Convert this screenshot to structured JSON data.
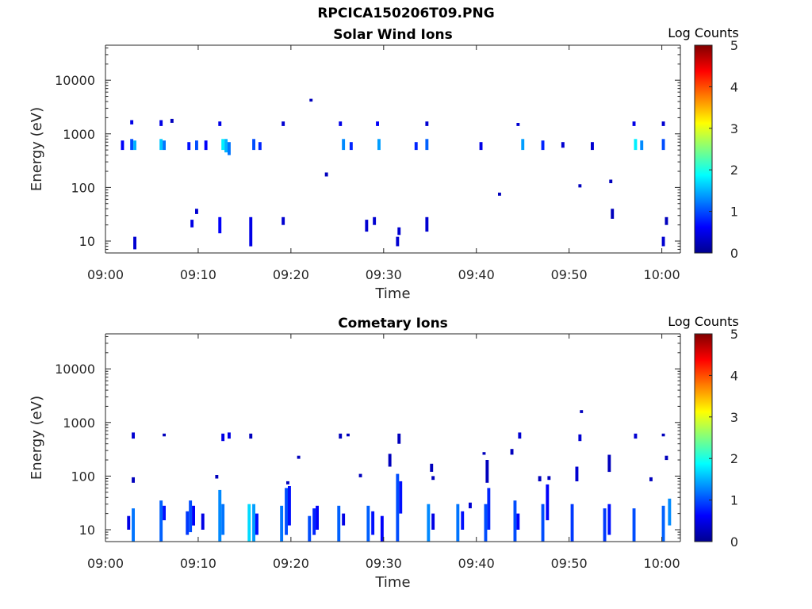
{
  "figure": {
    "title": "RPCICA150206T09.PNG"
  },
  "chart_data": [
    {
      "type": "heatmap",
      "title": "Solar Wind Ions",
      "xlabel": "Time",
      "ylabel": "Energy (eV)",
      "x_range": [
        "09:00",
        "10:02"
      ],
      "y_range": [
        6,
        45000
      ],
      "y_scale": "log",
      "x_ticks": [
        "09:00",
        "09:10",
        "09:20",
        "09:30",
        "09:40",
        "09:50",
        "10:00"
      ],
      "y_ticks": [
        "10",
        "100",
        "1000",
        "10000"
      ],
      "colorbar": {
        "label": "Log Counts",
        "min": 0,
        "max": 5,
        "ticks": [
          "0",
          "1",
          "2",
          "3",
          "4",
          "5"
        ],
        "colormap": "jet"
      },
      "grid": false,
      "cells": [
        {
          "t": "09:02:40",
          "e": [
            1500,
            1800
          ],
          "c": 0.5
        },
        {
          "t": "09:02:40",
          "e": [
            500,
            800
          ],
          "c": 1.0
        },
        {
          "t": "09:03:00",
          "e": [
            500,
            750
          ],
          "c": 1.5
        },
        {
          "t": "09:03:00",
          "e": [
            7,
            12
          ],
          "c": 0.4
        },
        {
          "t": "09:01:40",
          "e": [
            500,
            750
          ],
          "c": 0.6
        },
        {
          "t": "09:05:50",
          "e": [
            1400,
            1800
          ],
          "c": 0.5
        },
        {
          "t": "09:05:50",
          "e": [
            500,
            800
          ],
          "c": 1.6
        },
        {
          "t": "09:06:10",
          "e": [
            500,
            750
          ],
          "c": 1.2
        },
        {
          "t": "09:07:00",
          "e": [
            1600,
            1900
          ],
          "c": 0.3
        },
        {
          "t": "09:08:50",
          "e": [
            500,
            700
          ],
          "c": 0.7
        },
        {
          "t": "09:09:40",
          "e": [
            500,
            750
          ],
          "c": 1.0
        },
        {
          "t": "09:09:10",
          "e": [
            18,
            25
          ],
          "c": 0.5
        },
        {
          "t": "09:09:40",
          "e": [
            32,
            40
          ],
          "c": 0.4
        },
        {
          "t": "09:10:40",
          "e": [
            500,
            750
          ],
          "c": 0.6
        },
        {
          "t": "09:12:10",
          "e": [
            1400,
            1700
          ],
          "c": 0.5
        },
        {
          "t": "09:12:30",
          "e": [
            500,
            800
          ],
          "c": 1.8
        },
        {
          "t": "09:12:50",
          "e": [
            450,
            800
          ],
          "c": 1.5
        },
        {
          "t": "09:13:10",
          "e": [
            400,
            700
          ],
          "c": 1.2
        },
        {
          "t": "09:12:10",
          "e": [
            14,
            28
          ],
          "c": 0.6
        },
        {
          "t": "09:15:30",
          "e": [
            8,
            28
          ],
          "c": 0.5
        },
        {
          "t": "09:15:50",
          "e": [
            500,
            800
          ],
          "c": 1.0
        },
        {
          "t": "09:16:30",
          "e": [
            500,
            700
          ],
          "c": 0.8
        },
        {
          "t": "09:19:00",
          "e": [
            1400,
            1700
          ],
          "c": 0.4
        },
        {
          "t": "09:19:00",
          "e": [
            20,
            28
          ],
          "c": 0.4
        },
        {
          "t": "09:22:00",
          "e": [
            4000,
            4500
          ],
          "c": 0.3
        },
        {
          "t": "09:23:40",
          "e": [
            160,
            190
          ],
          "c": 0.3
        },
        {
          "t": "09:25:10",
          "e": [
            1400,
            1700
          ],
          "c": 0.5
        },
        {
          "t": "09:25:30",
          "e": [
            500,
            800
          ],
          "c": 1.3
        },
        {
          "t": "09:26:20",
          "e": [
            500,
            700
          ],
          "c": 0.8
        },
        {
          "t": "09:28:00",
          "e": [
            15,
            25
          ],
          "c": 0.4
        },
        {
          "t": "09:28:50",
          "e": [
            20,
            28
          ],
          "c": 0.4
        },
        {
          "t": "09:29:10",
          "e": [
            1400,
            1700
          ],
          "c": 0.6
        },
        {
          "t": "09:29:20",
          "e": [
            500,
            800
          ],
          "c": 1.4
        },
        {
          "t": "09:31:20",
          "e": [
            8,
            12
          ],
          "c": 0.4
        },
        {
          "t": "09:31:30",
          "e": [
            13,
            18
          ],
          "c": 0.4
        },
        {
          "t": "09:33:20",
          "e": [
            500,
            700
          ],
          "c": 0.8
        },
        {
          "t": "09:34:30",
          "e": [
            1400,
            1700
          ],
          "c": 0.4
        },
        {
          "t": "09:34:30",
          "e": [
            500,
            800
          ],
          "c": 1.1
        },
        {
          "t": "09:34:30",
          "e": [
            15,
            28
          ],
          "c": 0.4
        },
        {
          "t": "09:40:20",
          "e": [
            500,
            700
          ],
          "c": 0.5
        },
        {
          "t": "09:42:20",
          "e": [
            70,
            80
          ],
          "c": 0.3
        },
        {
          "t": "09:44:20",
          "e": [
            1400,
            1600
          ],
          "c": 0.4
        },
        {
          "t": "09:44:50",
          "e": [
            500,
            800
          ],
          "c": 1.4
        },
        {
          "t": "09:47:00",
          "e": [
            500,
            750
          ],
          "c": 0.8
        },
        {
          "t": "09:49:10",
          "e": [
            550,
            700
          ],
          "c": 0.4
        },
        {
          "t": "09:51:00",
          "e": [
            100,
            115
          ],
          "c": 0.3
        },
        {
          "t": "09:52:20",
          "e": [
            500,
            700
          ],
          "c": 0.4
        },
        {
          "t": "09:54:20",
          "e": [
            120,
            140
          ],
          "c": 0.3
        },
        {
          "t": "09:54:30",
          "e": [
            26,
            40
          ],
          "c": 0.3
        },
        {
          "t": "09:56:50",
          "e": [
            1400,
            1700
          ],
          "c": 0.5
        },
        {
          "t": "09:57:00",
          "e": [
            500,
            800
          ],
          "c": 1.8
        },
        {
          "t": "09:57:40",
          "e": [
            500,
            750
          ],
          "c": 1.3
        },
        {
          "t": "10:00:00",
          "e": [
            1400,
            1700
          ],
          "c": 0.4
        },
        {
          "t": "10:00:00",
          "e": [
            500,
            800
          ],
          "c": 1.0
        },
        {
          "t": "10:00:00",
          "e": [
            8,
            12
          ],
          "c": 0.4
        },
        {
          "t": "10:00:20",
          "e": [
            20,
            28
          ],
          "c": 0.3
        }
      ]
    },
    {
      "type": "heatmap",
      "title": "Cometary Ions",
      "xlabel": "Time",
      "ylabel": "Energy (eV)",
      "x_range": [
        "09:00",
        "10:02"
      ],
      "y_range": [
        6,
        45000
      ],
      "y_scale": "log",
      "x_ticks": [
        "09:00",
        "09:10",
        "09:20",
        "09:30",
        "09:40",
        "09:50",
        "10:00"
      ],
      "y_ticks": [
        "10",
        "100",
        "1000",
        "10000"
      ],
      "colorbar": {
        "label": "Log Counts",
        "min": 0,
        "max": 5,
        "ticks": [
          "0",
          "1",
          "2",
          "3",
          "4",
          "5"
        ],
        "colormap": "jet"
      },
      "grid": false,
      "cells": [
        {
          "t": "09:02:20",
          "e": [
            10,
            18
          ],
          "c": 0.5
        },
        {
          "t": "09:02:50",
          "e": [
            6,
            25
          ],
          "c": 1.2
        },
        {
          "t": "09:02:50",
          "e": [
            500,
            650
          ],
          "c": 0.4
        },
        {
          "t": "09:02:50",
          "e": [
            75,
            95
          ],
          "c": 0.3
        },
        {
          "t": "09:05:50",
          "e": [
            6,
            35
          ],
          "c": 1.1
        },
        {
          "t": "09:06:10",
          "e": [
            15,
            28
          ],
          "c": 0.7
        },
        {
          "t": "09:06:10",
          "e": [
            550,
            620
          ],
          "c": 0.3
        },
        {
          "t": "09:08:40",
          "e": [
            8,
            22
          ],
          "c": 0.9
        },
        {
          "t": "09:09:00",
          "e": [
            9,
            35
          ],
          "c": 1.0
        },
        {
          "t": "09:09:20",
          "e": [
            12,
            28
          ],
          "c": 0.6
        },
        {
          "t": "09:10:20",
          "e": [
            10,
            20
          ],
          "c": 0.5
        },
        {
          "t": "09:12:10",
          "e": [
            6,
            55
          ],
          "c": 1.3
        },
        {
          "t": "09:12:30",
          "e": [
            8,
            30
          ],
          "c": 1.2
        },
        {
          "t": "09:12:30",
          "e": [
            450,
            620
          ],
          "c": 0.5
        },
        {
          "t": "09:13:10",
          "e": [
            500,
            650
          ],
          "c": 0.5
        },
        {
          "t": "09:11:50",
          "e": [
            90,
            105
          ],
          "c": 0.3
        },
        {
          "t": "09:15:20",
          "e": [
            6,
            30
          ],
          "c": 1.7
        },
        {
          "t": "09:15:50",
          "e": [
            6,
            30
          ],
          "c": 1.4
        },
        {
          "t": "09:16:10",
          "e": [
            8,
            20
          ],
          "c": 0.7
        },
        {
          "t": "09:15:30",
          "e": [
            500,
            620
          ],
          "c": 0.3
        },
        {
          "t": "09:18:50",
          "e": [
            6,
            28
          ],
          "c": 1.2
        },
        {
          "t": "09:19:20",
          "e": [
            8,
            60
          ],
          "c": 1.0
        },
        {
          "t": "09:19:40",
          "e": [
            12,
            65
          ],
          "c": 0.7
        },
        {
          "t": "09:19:30",
          "e": [
            70,
            80
          ],
          "c": 0.3
        },
        {
          "t": "09:21:50",
          "e": [
            6,
            18
          ],
          "c": 1.0
        },
        {
          "t": "09:22:20",
          "e": [
            8,
            25
          ],
          "c": 0.8
        },
        {
          "t": "09:22:40",
          "e": [
            10,
            28
          ],
          "c": 0.6
        },
        {
          "t": "09:20:40",
          "e": [
            210,
            240
          ],
          "c": 0.3
        },
        {
          "t": "09:25:00",
          "e": [
            6,
            28
          ],
          "c": 1.1
        },
        {
          "t": "09:25:30",
          "e": [
            12,
            20
          ],
          "c": 0.5
        },
        {
          "t": "09:25:10",
          "e": [
            500,
            620
          ],
          "c": 0.3
        },
        {
          "t": "09:26:00",
          "e": [
            550,
            620
          ],
          "c": 0.3
        },
        {
          "t": "09:28:10",
          "e": [
            6,
            28
          ],
          "c": 1.1
        },
        {
          "t": "09:28:40",
          "e": [
            8,
            22
          ],
          "c": 0.7
        },
        {
          "t": "09:29:40",
          "e": [
            6,
            18
          ],
          "c": 0.6
        },
        {
          "t": "09:27:20",
          "e": [
            95,
            110
          ],
          "c": 0.3
        },
        {
          "t": "09:31:20",
          "e": [
            6,
            110
          ],
          "c": 1.0
        },
        {
          "t": "09:31:40",
          "e": [
            20,
            80
          ],
          "c": 0.7
        },
        {
          "t": "09:31:30",
          "e": [
            400,
            620
          ],
          "c": 0.3
        },
        {
          "t": "09:30:30",
          "e": [
            150,
            260
          ],
          "c": 0.3
        },
        {
          "t": "09:34:40",
          "e": [
            6,
            30
          ],
          "c": 1.3
        },
        {
          "t": "09:35:10",
          "e": [
            10,
            20
          ],
          "c": 0.5
        },
        {
          "t": "09:35:00",
          "e": [
            120,
            170
          ],
          "c": 0.3
        },
        {
          "t": "09:35:10",
          "e": [
            85,
            100
          ],
          "c": 0.3
        },
        {
          "t": "09:37:50",
          "e": [
            6,
            30
          ],
          "c": 1.2
        },
        {
          "t": "09:38:20",
          "e": [
            10,
            22
          ],
          "c": 0.7
        },
        {
          "t": "09:39:10",
          "e": [
            25,
            32
          ],
          "c": 0.4
        },
        {
          "t": "09:40:50",
          "e": [
            6,
            30
          ],
          "c": 1.0
        },
        {
          "t": "09:41:10",
          "e": [
            10,
            60
          ],
          "c": 0.8
        },
        {
          "t": "09:41:00",
          "e": [
            75,
            200
          ],
          "c": 0.3
        },
        {
          "t": "09:40:40",
          "e": [
            250,
            280
          ],
          "c": 0.3
        },
        {
          "t": "09:44:00",
          "e": [
            6,
            35
          ],
          "c": 1.0
        },
        {
          "t": "09:44:20",
          "e": [
            10,
            20
          ],
          "c": 0.6
        },
        {
          "t": "09:44:30",
          "e": [
            500,
            650
          ],
          "c": 0.4
        },
        {
          "t": "09:43:40",
          "e": [
            250,
            320
          ],
          "c": 0.3
        },
        {
          "t": "09:47:00",
          "e": [
            6,
            30
          ],
          "c": 1.0
        },
        {
          "t": "09:47:30",
          "e": [
            15,
            70
          ],
          "c": 0.6
        },
        {
          "t": "09:46:40",
          "e": [
            80,
            100
          ],
          "c": 0.3
        },
        {
          "t": "09:47:40",
          "e": [
            85,
            100
          ],
          "c": 0.3
        },
        {
          "t": "09:50:10",
          "e": [
            6,
            30
          ],
          "c": 0.9
        },
        {
          "t": "09:50:40",
          "e": [
            80,
            150
          ],
          "c": 0.4
        },
        {
          "t": "09:51:10",
          "e": [
            1500,
            1700
          ],
          "c": 0.3
        },
        {
          "t": "09:51:00",
          "e": [
            450,
            600
          ],
          "c": 0.4
        },
        {
          "t": "09:53:40",
          "e": [
            6,
            25
          ],
          "c": 0.9
        },
        {
          "t": "09:54:10",
          "e": [
            8,
            30
          ],
          "c": 0.7
        },
        {
          "t": "09:54:10",
          "e": [
            120,
            250
          ],
          "c": 0.3
        },
        {
          "t": "09:56:50",
          "e": [
            6,
            25
          ],
          "c": 1.0
        },
        {
          "t": "09:57:00",
          "e": [
            500,
            620
          ],
          "c": 0.4
        },
        {
          "t": "09:58:40",
          "e": [
            80,
            95
          ],
          "c": 0.3
        },
        {
          "t": "10:00:00",
          "e": [
            6,
            28
          ],
          "c": 1.1
        },
        {
          "t": "10:00:40",
          "e": [
            12,
            38
          ],
          "c": 1.3
        },
        {
          "t": "10:00:20",
          "e": [
            200,
            240
          ],
          "c": 0.3
        },
        {
          "t": "10:00:00",
          "e": [
            550,
            620
          ],
          "c": 0.3
        }
      ]
    }
  ]
}
